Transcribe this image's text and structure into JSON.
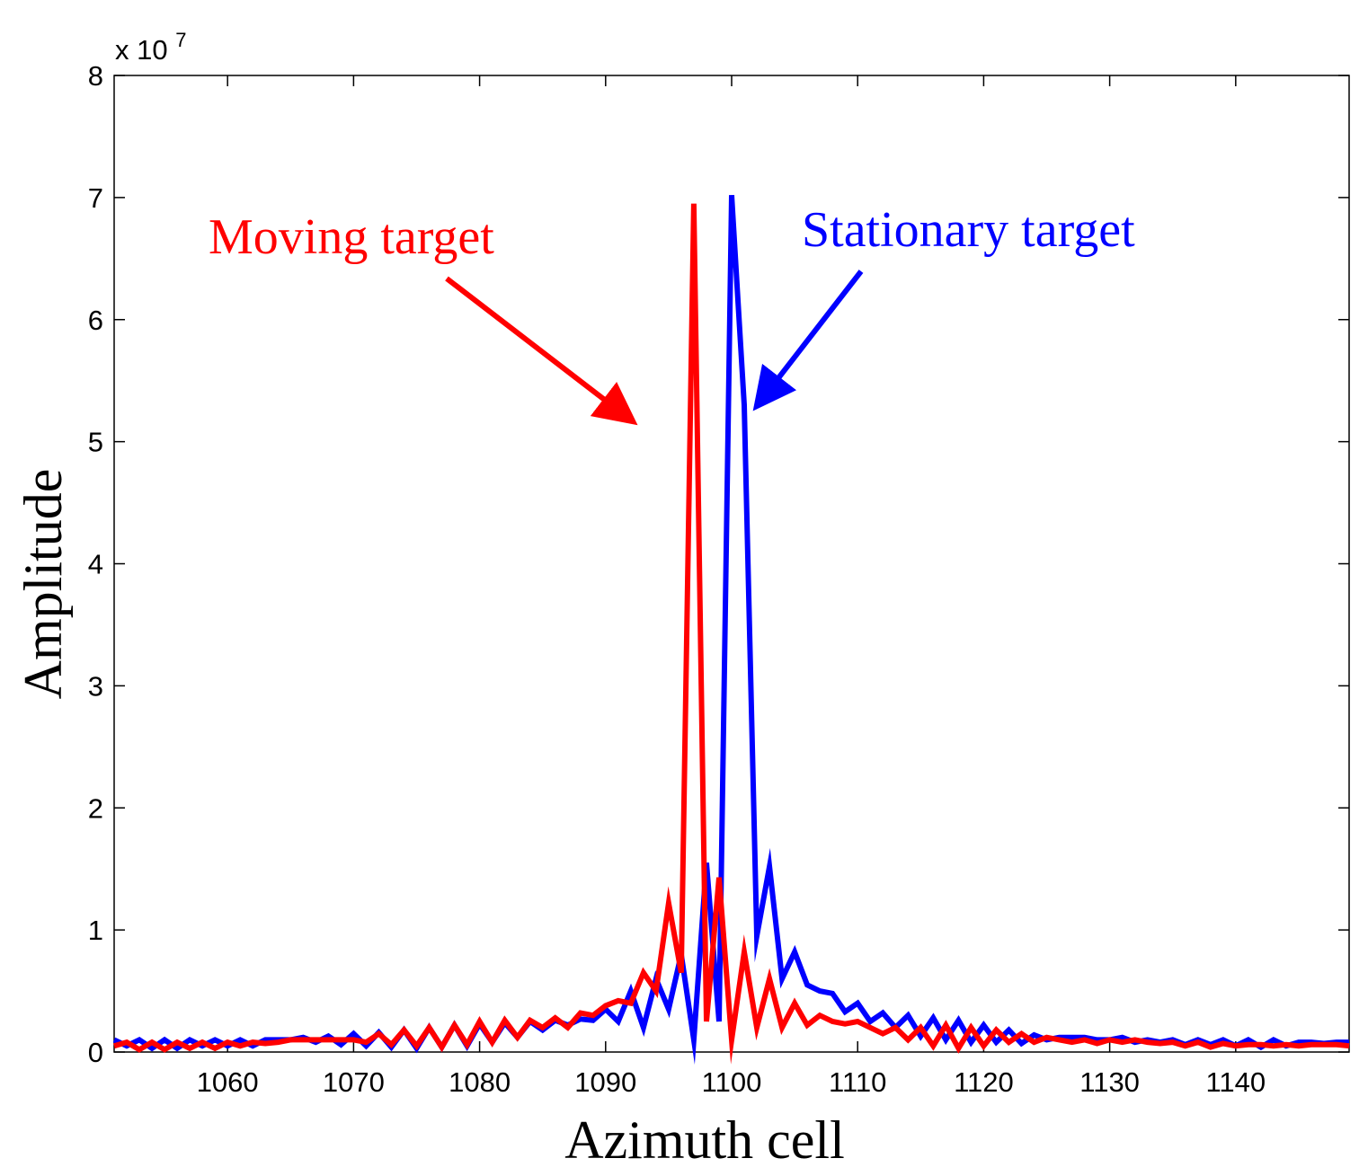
{
  "chart_data": {
    "type": "line",
    "xlabel": "Azimuth cell",
    "ylabel": "Amplitude",
    "y_multiplier_label": {
      "base": "x 10",
      "exponent": "7"
    },
    "xlim": [
      1051,
      1149
    ],
    "ylim": [
      0,
      8
    ],
    "x_ticks": [
      1060,
      1070,
      1080,
      1090,
      1100,
      1110,
      1120,
      1130,
      1140
    ],
    "y_ticks": [
      0,
      1,
      2,
      3,
      4,
      5,
      6,
      7,
      8
    ],
    "grid": false,
    "series": [
      {
        "name": "Stationary target",
        "color": "#0000ff",
        "x_start": 1051,
        "values": [
          0.1,
          0.05,
          0.1,
          0.03,
          0.1,
          0.03,
          0.1,
          0.05,
          0.1,
          0.05,
          0.1,
          0.05,
          0.1,
          0.1,
          0.1,
          0.12,
          0.08,
          0.13,
          0.06,
          0.15,
          0.05,
          0.16,
          0.04,
          0.18,
          0.03,
          0.2,
          0.04,
          0.22,
          0.05,
          0.23,
          0.08,
          0.24,
          0.12,
          0.25,
          0.18,
          0.26,
          0.22,
          0.27,
          0.26,
          0.35,
          0.25,
          0.5,
          0.2,
          0.6,
          0.35,
          0.8,
          0.1,
          1.55,
          0.25,
          7.02,
          5.3,
          0.95,
          1.52,
          0.6,
          0.82,
          0.55,
          0.5,
          0.48,
          0.33,
          0.4,
          0.25,
          0.32,
          0.2,
          0.3,
          0.13,
          0.28,
          0.1,
          0.26,
          0.08,
          0.22,
          0.08,
          0.18,
          0.07,
          0.14,
          0.1,
          0.12,
          0.12,
          0.12,
          0.1,
          0.1,
          0.12,
          0.08,
          0.1,
          0.08,
          0.1,
          0.06,
          0.1,
          0.06,
          0.1,
          0.05,
          0.1,
          0.04,
          0.1,
          0.05,
          0.08,
          0.08,
          0.07,
          0.08,
          0.08
        ]
      },
      {
        "name": "Moving target",
        "color": "#ff0000",
        "x_start": 1051,
        "values": [
          0.05,
          0.08,
          0.02,
          0.08,
          0.02,
          0.08,
          0.03,
          0.08,
          0.03,
          0.08,
          0.05,
          0.08,
          0.07,
          0.08,
          0.1,
          0.1,
          0.1,
          0.1,
          0.1,
          0.1,
          0.08,
          0.15,
          0.06,
          0.18,
          0.05,
          0.2,
          0.04,
          0.22,
          0.06,
          0.25,
          0.08,
          0.26,
          0.12,
          0.26,
          0.2,
          0.28,
          0.2,
          0.32,
          0.3,
          0.38,
          0.42,
          0.4,
          0.65,
          0.5,
          1.22,
          0.65,
          6.95,
          0.25,
          1.43,
          0.1,
          0.82,
          0.2,
          0.6,
          0.2,
          0.4,
          0.22,
          0.3,
          0.25,
          0.23,
          0.25,
          0.2,
          0.15,
          0.2,
          0.1,
          0.2,
          0.05,
          0.22,
          0.03,
          0.2,
          0.05,
          0.18,
          0.08,
          0.15,
          0.08,
          0.12,
          0.1,
          0.08,
          0.1,
          0.07,
          0.1,
          0.08,
          0.1,
          0.08,
          0.07,
          0.08,
          0.05,
          0.08,
          0.04,
          0.07,
          0.05,
          0.06,
          0.06,
          0.05,
          0.06,
          0.05,
          0.06,
          0.06,
          0.06,
          0.05
        ]
      }
    ],
    "annotations": [
      {
        "text": "Moving target",
        "color": "#ff0000"
      },
      {
        "text": "Stationary target",
        "color": "#0000ff"
      }
    ]
  }
}
